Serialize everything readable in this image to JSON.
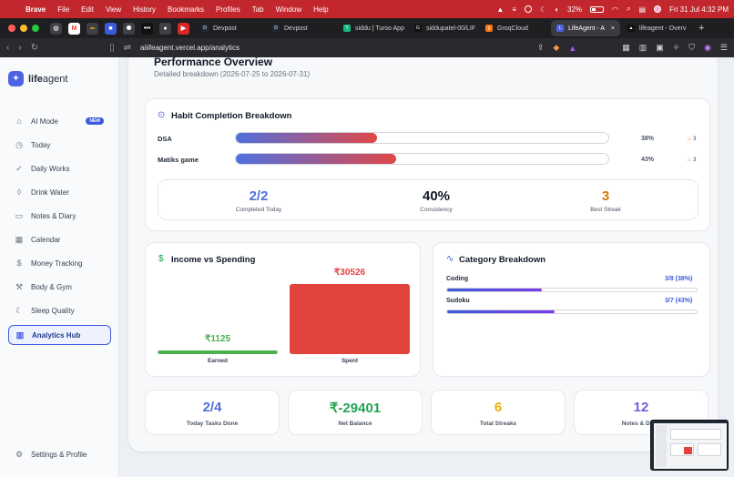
{
  "menubar": {
    "app": "Brave",
    "items": [
      "File",
      "Edit",
      "View",
      "History",
      "Bookmarks",
      "Profiles",
      "Tab",
      "Window",
      "Help"
    ],
    "battery": "32%",
    "datetime": "Fri 31 Jul  4:32 PM"
  },
  "tabs": [
    {
      "label": "Devpost",
      "fav": "D",
      "color": "#1f2937"
    },
    {
      "label": "Devpost",
      "fav": "D",
      "color": "#1f2937"
    },
    {
      "label": "siddu | Turso App",
      "fav": "T",
      "color": "#10b981"
    },
    {
      "label": "siddupatel-00/LIF",
      "fav": "G",
      "color": "#111"
    },
    {
      "label": "GroqCloud",
      "fav": "g",
      "color": "#f97316"
    },
    {
      "label": "LifeAgent - A",
      "fav": "L",
      "color": "#4f63e6",
      "active": true
    },
    {
      "label": "lifeagent - Overv",
      "fav": "▲",
      "color": "#111"
    }
  ],
  "address": {
    "url": "aiiifeagent.vercel.app/analytics"
  },
  "sidebar": {
    "brand_bold": "life",
    "brand_rest": "agent",
    "items": [
      {
        "label": "AI Mode",
        "badge": "NEW"
      },
      {
        "label": "Today"
      },
      {
        "label": "Daily Works"
      },
      {
        "label": "Drink Water"
      },
      {
        "label": "Notes & Diary"
      },
      {
        "label": "Calendar"
      },
      {
        "label": "Money Tracking"
      },
      {
        "label": "Body & Gym"
      },
      {
        "label": "Sleep Quality"
      },
      {
        "label": "Analytics Hub"
      }
    ],
    "settings": "Settings & Profile"
  },
  "header": {
    "title": "Performance Overview",
    "subtitle": "Detailed breakdown (2026-07-25 to 2026-07-31)"
  },
  "habits": {
    "title": "Habit Completion Breakdown",
    "rows": [
      {
        "name": "DSA",
        "pct": "38%",
        "value": 38,
        "streak": "3"
      },
      {
        "name": "Matiks game",
        "pct": "43%",
        "value": 43,
        "streak": "3"
      }
    ],
    "stats": [
      {
        "value": "2/2",
        "label": "Completed Today",
        "color": "#4f70d9"
      },
      {
        "value": "40%",
        "label": "Consistency",
        "color": "#111827"
      },
      {
        "value": "3",
        "label": "Best Streak",
        "color": "#d97706"
      }
    ]
  },
  "income": {
    "title": "Income vs Spending",
    "earned_value": "₹1125",
    "earned_label": "Earned",
    "spent_value": "₹30526",
    "spent_label": "Spent"
  },
  "chart_data": {
    "type": "bar",
    "categories": [
      "Earned",
      "Spent"
    ],
    "values": [
      1125,
      30526
    ]
  },
  "category": {
    "title": "Category Breakdown",
    "items": [
      {
        "name": "Coding",
        "value": "3/8 (38%)",
        "fraction": 0.38
      },
      {
        "name": "Sudoku",
        "value": "3/7 (43%)",
        "fraction": 0.43
      }
    ]
  },
  "summary": [
    {
      "value": "2/4",
      "label": "Today Tasks Done",
      "color": "#4f70d9"
    },
    {
      "value": "₹-29401",
      "label": "Net Balance",
      "color": "#22a355"
    },
    {
      "value": "6",
      "label": "Total Streaks",
      "color": "#eab308"
    },
    {
      "value": "12",
      "label": "Notes & Diary",
      "color": "#7c5bd9"
    }
  ]
}
